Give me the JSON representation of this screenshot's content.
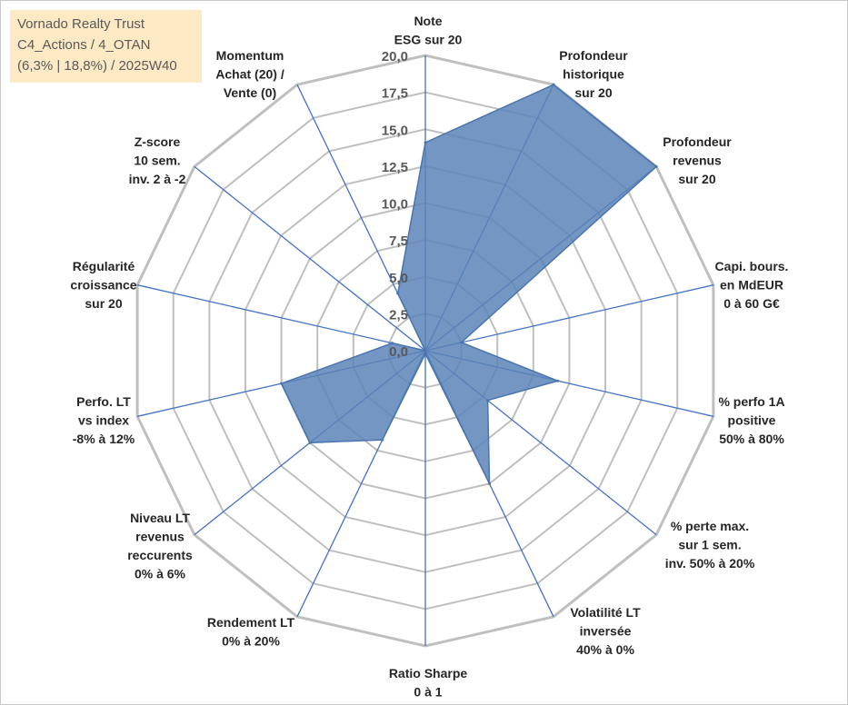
{
  "title_box": {
    "line1": "Vornado Realty Trust",
    "line2": "C4_Actions / 4_OTAN",
    "line3": "(6,3% | 18,8%) / 2025W40"
  },
  "colors": {
    "grid": "#bfbfbf",
    "spoke": "#4472c4",
    "fill": "#5b84b8",
    "stroke": "#4a74ad",
    "title_bg": "#fde9c4"
  },
  "chart_data": {
    "type": "radar",
    "rmax": 20,
    "ticks": [
      "0,0",
      "2,5",
      "5,0",
      "7,5",
      "10,0",
      "12,5",
      "15,0",
      "17,5",
      "20,0"
    ],
    "tick_values": [
      0,
      2.5,
      5,
      7.5,
      10,
      12.5,
      15,
      17.5,
      20
    ],
    "axes": [
      {
        "lines": [
          "Note",
          "ESG sur 20"
        ],
        "value": 14.1
      },
      {
        "lines": [
          "Profondeur",
          "historique",
          "sur 20"
        ],
        "value": 20.0
      },
      {
        "lines": [
          "Profondeur",
          "revenus",
          "sur 20"
        ],
        "value": 20.0
      },
      {
        "lines": [
          "Capi. bours.",
          "en MdEUR",
          "0 à 60 G€"
        ],
        "value": 2.5
      },
      {
        "lines": [
          "% perfo 1A",
          "positive",
          "50% à 80%"
        ],
        "value": 9.2
      },
      {
        "lines": [
          "% perte max.",
          "sur 1 sem.",
          "inv. 50% à 20%"
        ],
        "value": 5.4
      },
      {
        "lines": [
          "Volatilité LT",
          "inversée",
          "40% à 0%"
        ],
        "value": 10.0
      },
      {
        "lines": [
          "Ratio Sharpe",
          "0 à 1"
        ],
        "value": 0.2
      },
      {
        "lines": [
          "Rendement LT",
          "0% à 20%"
        ],
        "value": 6.7
      },
      {
        "lines": [
          "Niveau LT",
          "revenus",
          "reccurents",
          "0% à 6%"
        ],
        "value": 10.0
      },
      {
        "lines": [
          "Perfo. LT",
          "vs index",
          "-8% à 12%"
        ],
        "value": 10.0
      },
      {
        "lines": [
          "Régularité",
          "croissance",
          "sur 20"
        ],
        "value": 2.3
      },
      {
        "lines": [
          "Z-score",
          "10 sem.",
          "inv. 2 à -2"
        ],
        "value": 0.0
      },
      {
        "lines": [
          "Momentum",
          "Achat (20) /",
          "Vente (0)"
        ],
        "value": 4.3
      }
    ]
  }
}
